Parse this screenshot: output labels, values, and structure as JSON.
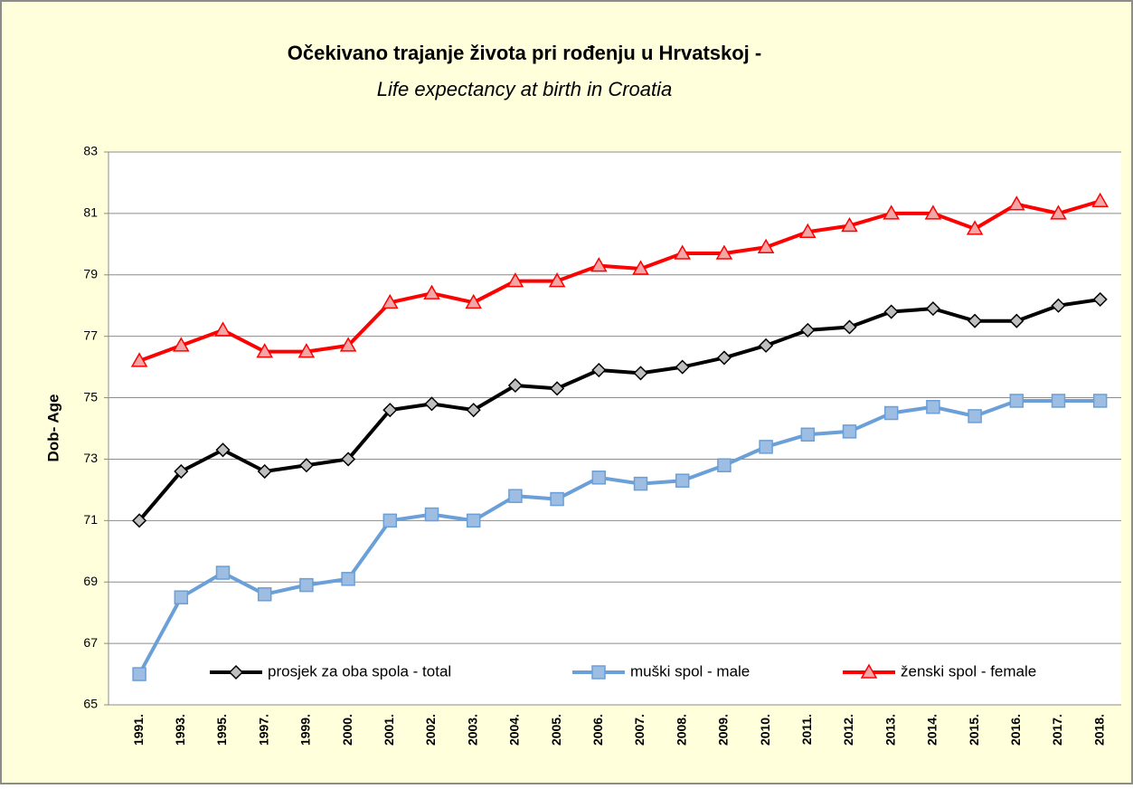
{
  "chart_data": {
    "type": "line",
    "title": "Očekivano trajanje života pri rođenju u Hrvatskoj -",
    "subtitle": "Life expectancy at birth in Croatia",
    "y_label": "Dob- Age",
    "categories": [
      "1991.",
      "1993.",
      "1995.",
      "1997.",
      "1999.",
      "2000.",
      "2001.",
      "2002.",
      "2003.",
      "2004.",
      "2005.",
      "2006.",
      "2007.",
      "2008.",
      "2009.",
      "2010.",
      "2011.",
      "2012.",
      "2013.",
      "2014.",
      "2015.",
      "2016.",
      "2017.",
      "2018."
    ],
    "series": [
      {
        "name": "prosjek za oba spola - total",
        "color": "#000000",
        "marker": "diamond",
        "marker_color": "#bfbfbf",
        "values": [
          71.0,
          72.6,
          73.3,
          72.6,
          72.8,
          73.0,
          74.6,
          74.8,
          74.6,
          75.4,
          75.3,
          75.9,
          75.8,
          76.0,
          76.3,
          76.7,
          77.2,
          77.3,
          77.8,
          77.9,
          77.5,
          77.5,
          78.0,
          78.2
        ]
      },
      {
        "name": "muški spol - male",
        "color": "#6a9fd8",
        "marker": "square",
        "marker_color": "#9dbde3",
        "values": [
          66.0,
          68.5,
          69.3,
          68.6,
          68.9,
          69.1,
          71.0,
          71.2,
          71.0,
          71.8,
          71.7,
          72.4,
          72.2,
          72.3,
          72.8,
          73.4,
          73.8,
          73.9,
          74.5,
          74.7,
          74.4,
          74.9,
          74.9,
          74.9
        ]
      },
      {
        "name": "ženski spol - female",
        "color": "#ff0000",
        "marker": "triangle",
        "marker_color": "#f4a6a6",
        "values": [
          76.2,
          76.7,
          77.2,
          76.5,
          76.5,
          76.7,
          78.1,
          78.4,
          78.1,
          78.8,
          78.8,
          79.3,
          79.2,
          79.7,
          79.7,
          79.9,
          80.4,
          80.6,
          81.0,
          81.0,
          80.5,
          81.3,
          81.0,
          81.4
        ]
      }
    ],
    "ylim": [
      65,
      83
    ],
    "yticks": [
      65,
      67,
      69,
      71,
      73,
      75,
      77,
      79,
      81,
      83
    ],
    "grid": true,
    "legend": "bottom"
  }
}
